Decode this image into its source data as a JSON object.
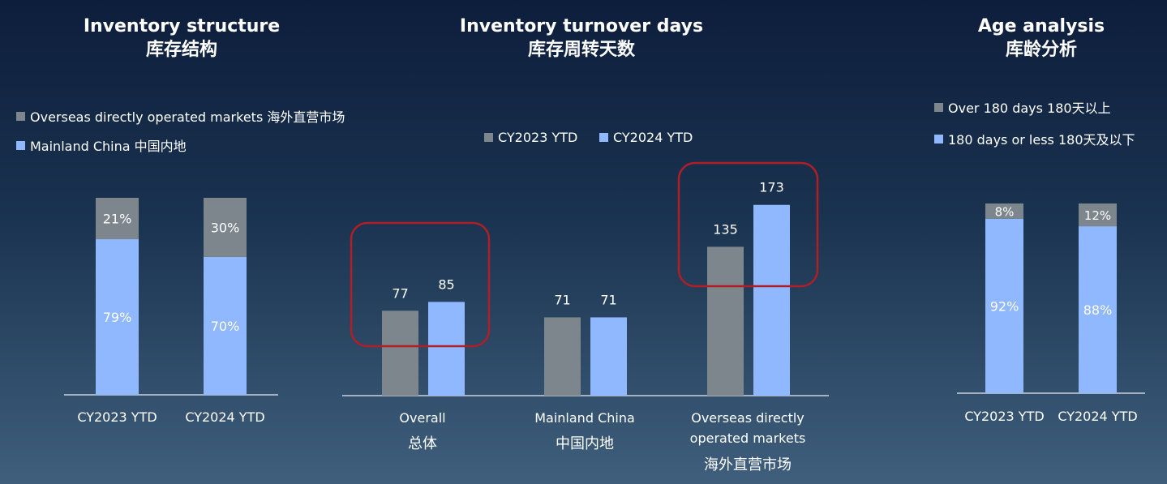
{
  "colors": {
    "gray": "#7d858d",
    "blue": "#90b8ff",
    "axis": "#c9d3df",
    "highlight": "#b01e26"
  },
  "panels": {
    "structure": {
      "title_en": "Inventory structure",
      "title_zh": "库存结构",
      "legend": [
        {
          "label": "Overseas directly operated markets 海外直营市场",
          "color": "gray"
        },
        {
          "label": "Mainland China 中国内地",
          "color": "blue"
        }
      ]
    },
    "turnover": {
      "title_en": "Inventory turnover days",
      "title_zh": "库存周转天数",
      "legend": [
        {
          "label": "CY2023 YTD",
          "color": "gray"
        },
        {
          "label": "CY2024 YTD",
          "color": "blue"
        }
      ]
    },
    "age": {
      "title_en": "Age analysis",
      "title_zh": "库龄分析",
      "legend": [
        {
          "label": "Over 180 days 180天以上",
          "color": "gray"
        },
        {
          "label": "180 days or less 180天及以下",
          "color": "blue"
        }
      ]
    }
  },
  "chart_data": [
    {
      "type": "bar",
      "stacked": true,
      "title": "Inventory structure 库存结构",
      "categories": [
        "CY2023 YTD",
        "CY2024 YTD"
      ],
      "series": [
        {
          "name": "Mainland China 中国内地",
          "values": [
            79,
            70
          ],
          "labels": [
            "79%",
            "70%"
          ]
        },
        {
          "name": "Overseas directly operated markets 海外直营市场",
          "values": [
            21,
            30
          ],
          "labels": [
            "21%",
            "30%"
          ]
        }
      ],
      "ylim": [
        0,
        100
      ]
    },
    {
      "type": "bar",
      "stacked": false,
      "title": "Inventory turnover days 库存周转天数",
      "categories": [
        {
          "en": "Overall",
          "zh": "总体"
        },
        {
          "en": "Mainland China",
          "zh": "中国内地"
        },
        {
          "en": "Overseas directly",
          "en2": "operated markets",
          "zh": "海外直营市场"
        }
      ],
      "series": [
        {
          "name": "CY2023 YTD",
          "values": [
            77,
            71,
            135
          ]
        },
        {
          "name": "CY2024 YTD",
          "values": [
            85,
            71,
            173
          ]
        }
      ],
      "highlighted_categories": [
        0,
        2
      ],
      "ylim": [
        0,
        230
      ]
    },
    {
      "type": "bar",
      "stacked": true,
      "title": "Age analysis 库龄分析",
      "categories": [
        "CY2023 YTD",
        "CY2024 YTD"
      ],
      "series": [
        {
          "name": "180 days or less 180天及以下",
          "values": [
            92,
            88
          ],
          "labels": [
            "92%",
            "88%"
          ]
        },
        {
          "name": "Over 180 days 180天以上",
          "values": [
            8,
            12
          ],
          "labels": [
            "8%",
            "12%"
          ]
        }
      ],
      "ylim": [
        0,
        100
      ]
    }
  ]
}
